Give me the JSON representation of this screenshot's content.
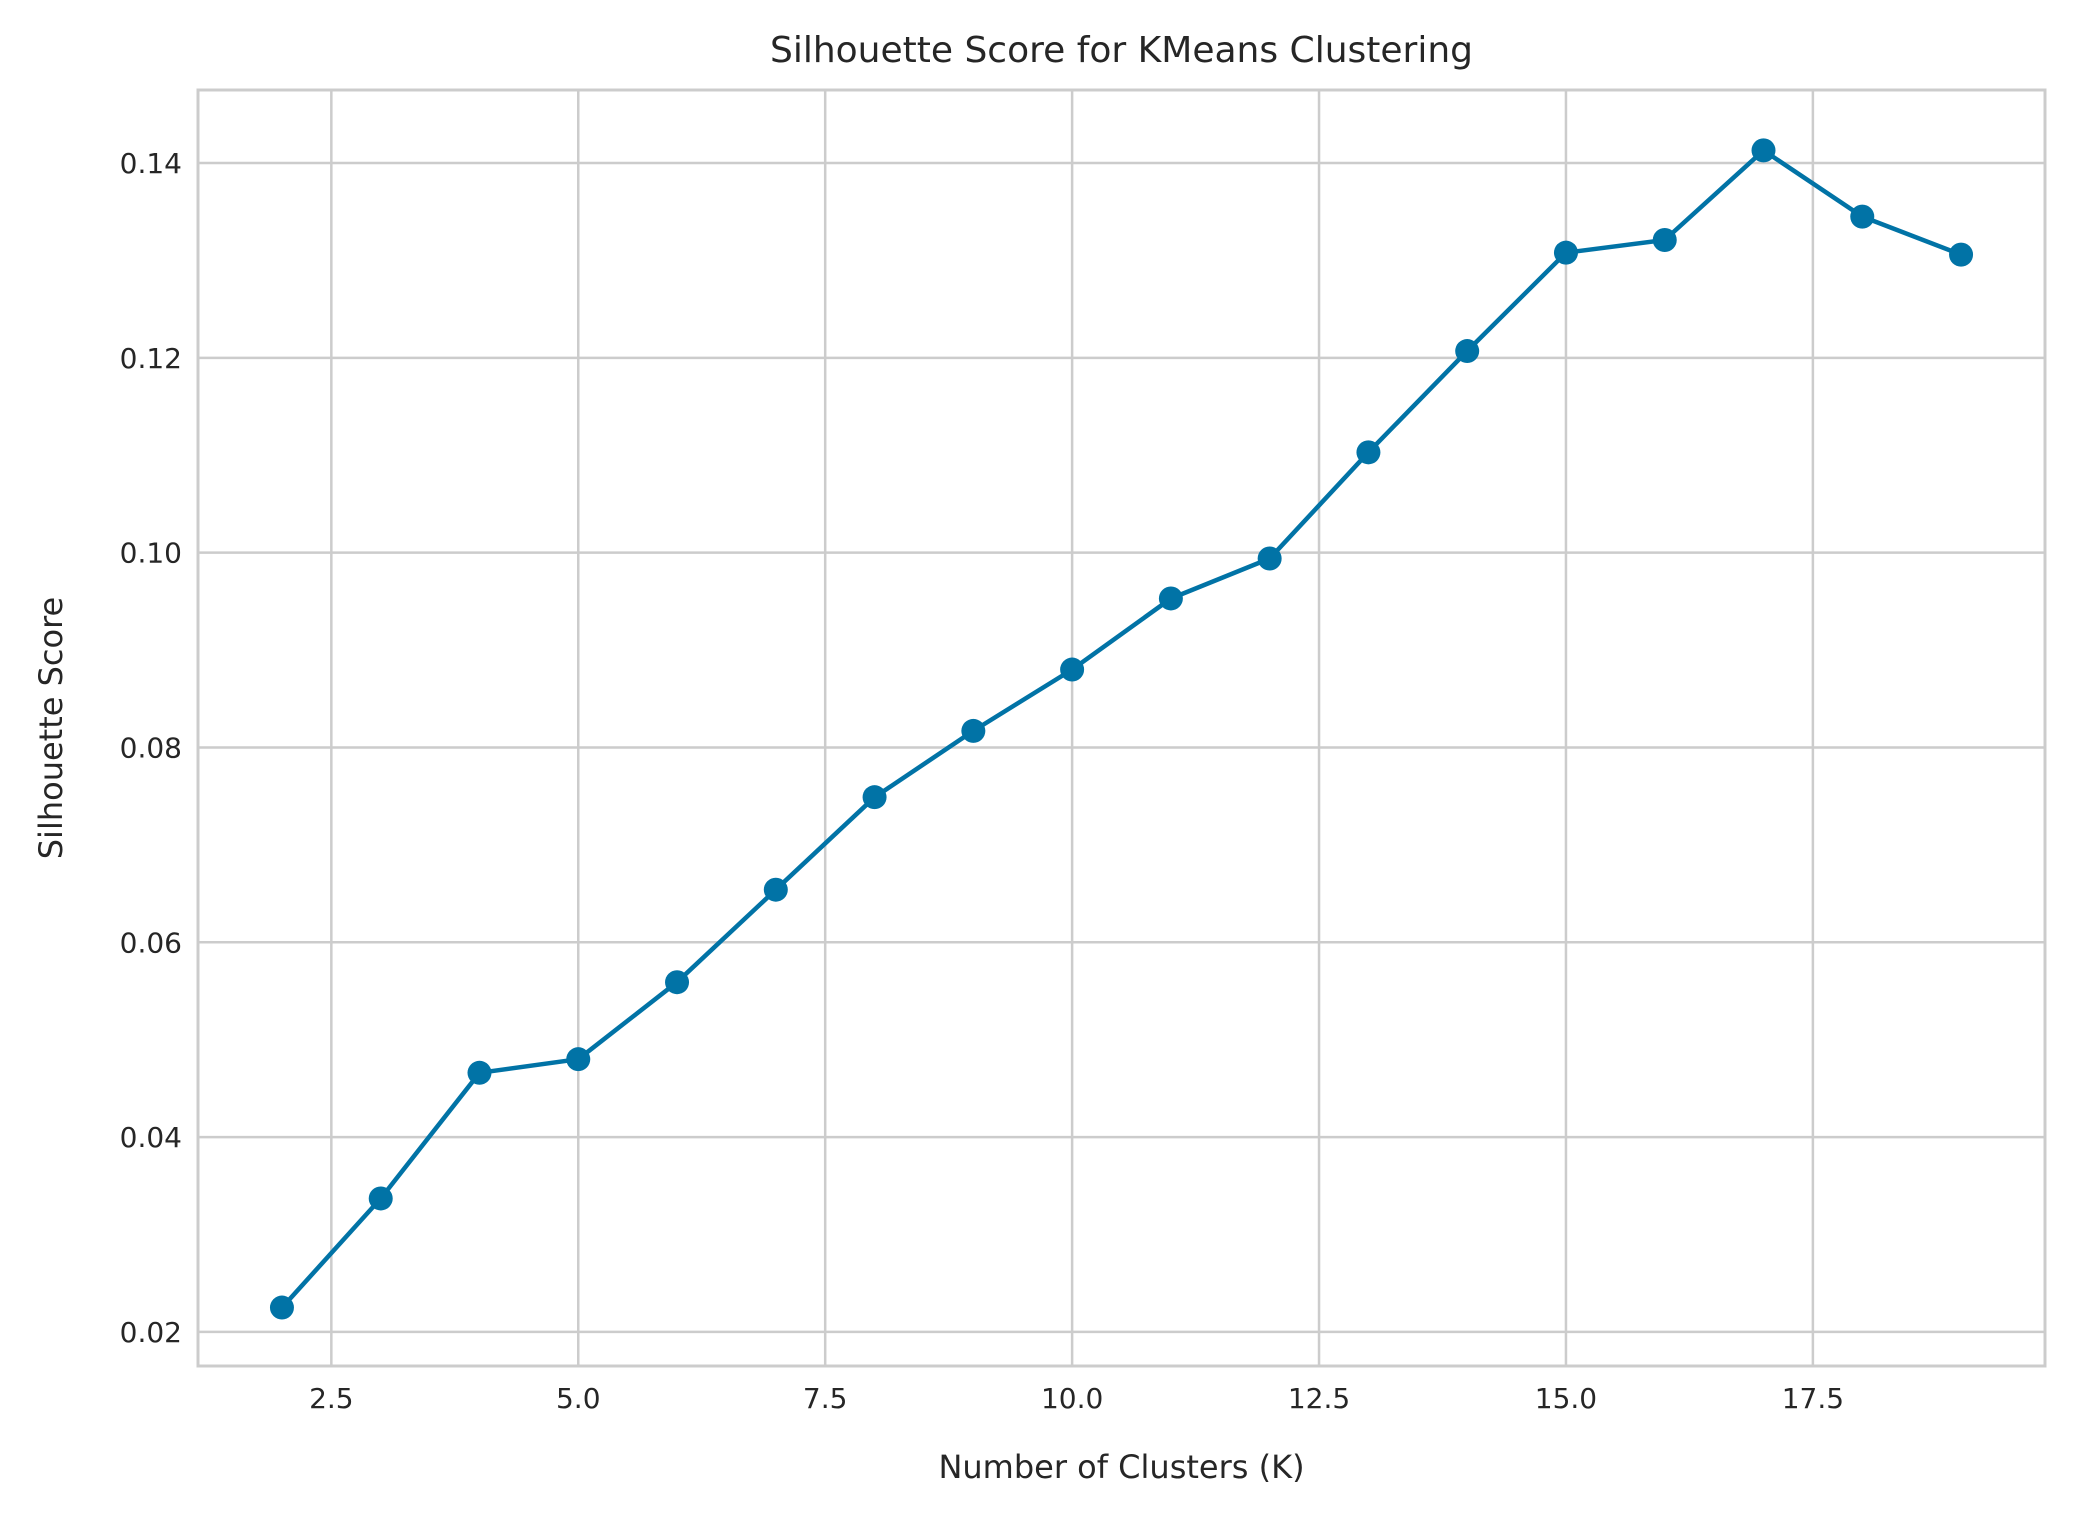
{
  "chart_data": {
    "type": "line",
    "title": "Silhouette Score for KMeans Clustering",
    "xlabel": "Number of Clusters (K)",
    "ylabel": "Silhouette Score",
    "xlim": [
      1.15,
      19.85
    ],
    "ylim": [
      0.0165,
      0.1475
    ],
    "xticks": [
      2.5,
      5.0,
      7.5,
      10.0,
      12.5,
      15.0,
      17.5
    ],
    "xtick_labels": [
      "2.5",
      "5.0",
      "7.5",
      "10.0",
      "12.5",
      "15.0",
      "17.5"
    ],
    "yticks": [
      0.02,
      0.04,
      0.06,
      0.08,
      0.1,
      0.12,
      0.14
    ],
    "ytick_labels": [
      "0.02",
      "0.04",
      "0.06",
      "0.08",
      "0.10",
      "0.12",
      "0.14"
    ],
    "grid": true,
    "legend": "none",
    "color": "#0173a6",
    "series": [
      {
        "x": [
          2,
          3,
          4,
          5,
          6,
          7,
          8,
          9,
          10,
          11,
          12,
          13,
          14,
          15,
          16,
          17,
          18,
          19
        ],
        "values": [
          0.0225,
          0.0337,
          0.0466,
          0.048,
          0.0559,
          0.0654,
          0.0749,
          0.0817,
          0.088,
          0.0953,
          0.0994,
          0.1103,
          0.1207,
          0.1308,
          0.1321,
          0.1413,
          0.1345,
          0.1306
        ],
        "marker": "circle"
      }
    ]
  }
}
